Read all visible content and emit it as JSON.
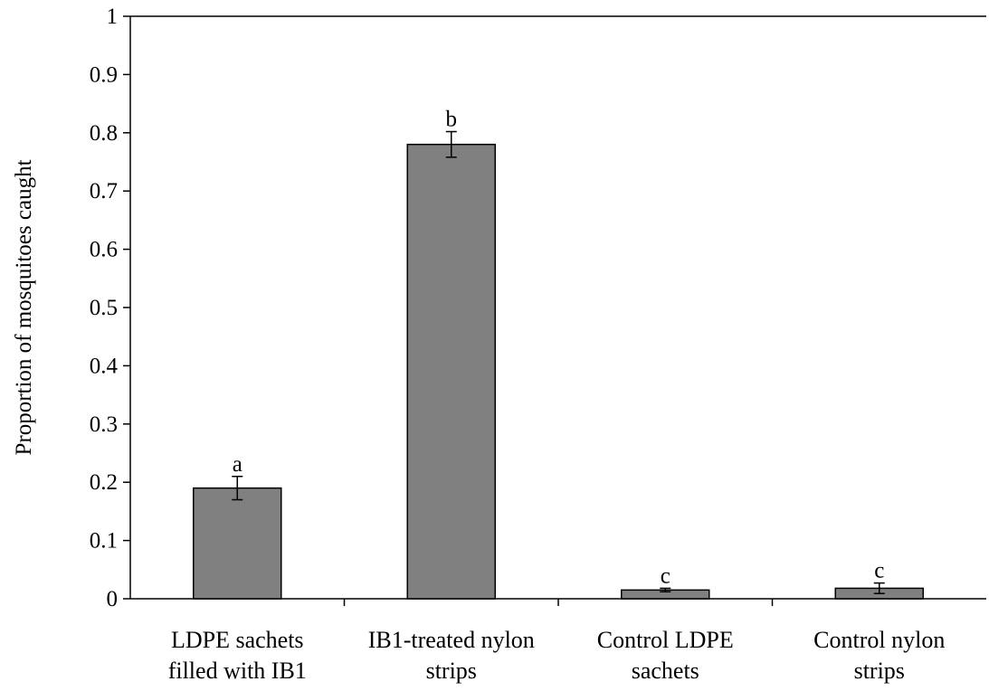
{
  "chart_data": {
    "type": "bar",
    "title": "",
    "xlabel": "",
    "ylabel": "Proportion of mosquitoes caught",
    "ylim": [
      0,
      1
    ],
    "yticks": [
      "0",
      "0.1",
      "0.2",
      "0.3",
      "0.4",
      "0.5",
      "0.6",
      "0.7",
      "0.8",
      "0.9",
      "1"
    ],
    "categories": [
      [
        "LDPE sachets",
        "filled with IB1"
      ],
      [
        "IB1-treated nylon",
        "strips"
      ],
      [
        "Control LDPE",
        "sachets"
      ],
      [
        "Control nylon",
        "strips"
      ]
    ],
    "values": [
      0.19,
      0.78,
      0.015,
      0.018
    ],
    "error": [
      0.02,
      0.022,
      0.003,
      0.009
    ],
    "significance_labels": [
      "a",
      "b",
      "c",
      "c"
    ],
    "grid": false,
    "legend": "none",
    "bar_color": "#808080",
    "bar_edge_color": "#000000"
  }
}
